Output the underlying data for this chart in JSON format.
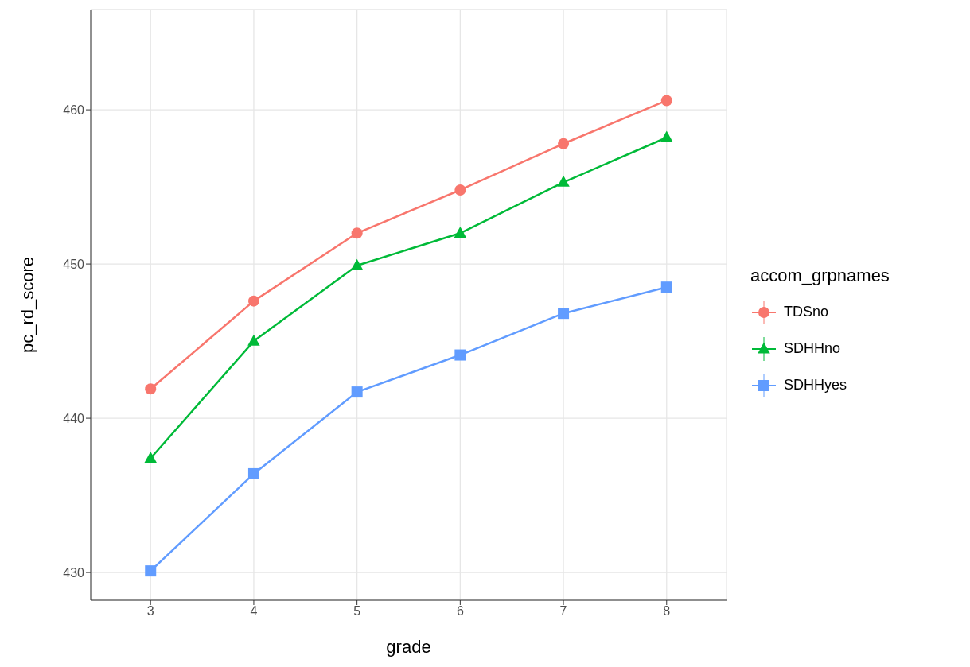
{
  "chart_data": {
    "type": "line",
    "xlabel": "grade",
    "ylabel": "pc_rd_score",
    "legend_title": "accom_grpnames",
    "x": [
      3,
      4,
      5,
      6,
      7,
      8
    ],
    "series": [
      {
        "name": "TDSno",
        "color": "#f8766d",
        "marker": "circle",
        "values": [
          441.9,
          447.6,
          452.0,
          454.8,
          457.8,
          460.6
        ]
      },
      {
        "name": "SDHHno",
        "color": "#00ba38",
        "marker": "triangle",
        "values": [
          437.4,
          445.0,
          449.9,
          452.0,
          455.3,
          458.2
        ]
      },
      {
        "name": "SDHHyes",
        "color": "#619cff",
        "marker": "square",
        "values": [
          430.1,
          436.4,
          441.7,
          444.1,
          446.8,
          448.5
        ]
      }
    ],
    "xlim": [
      2.42,
      8.58
    ],
    "xticks": [
      3,
      4,
      5,
      6,
      7,
      8
    ],
    "ylim": [
      428.2,
      466.5
    ],
    "yticks": [
      430,
      440,
      450,
      460
    ],
    "grid": true,
    "legend": "right",
    "line_style": "solid"
  }
}
